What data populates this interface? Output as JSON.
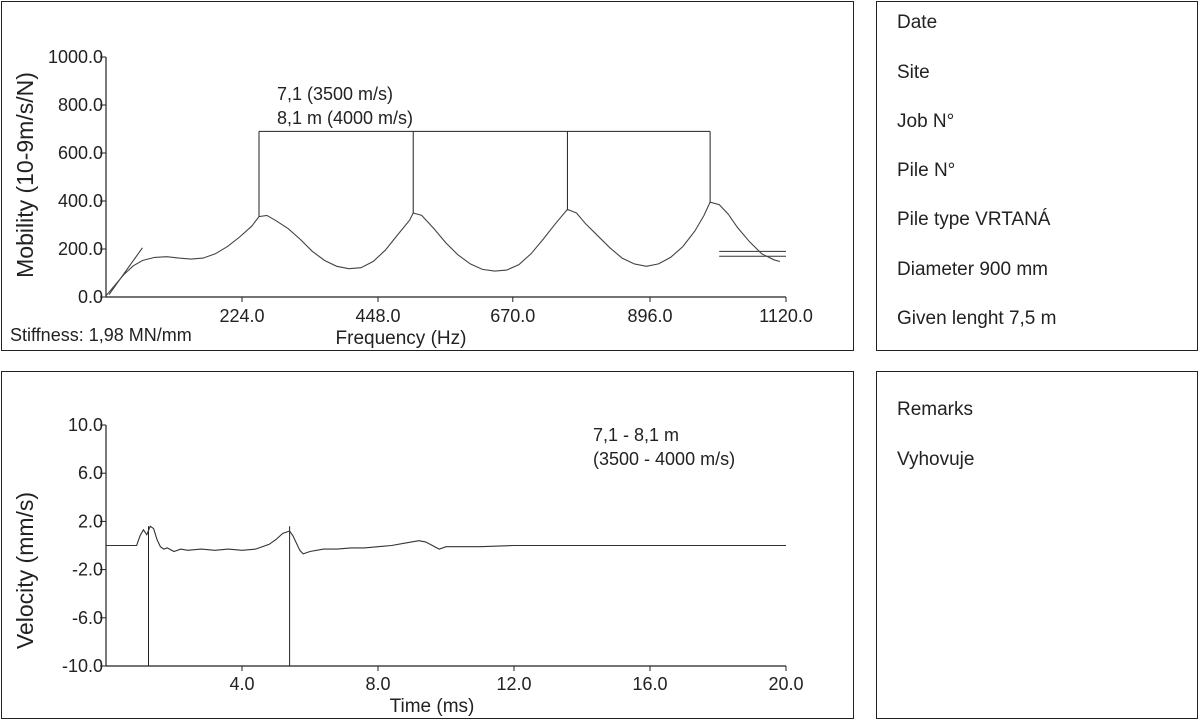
{
  "info": {
    "date_label": "Date",
    "site_label": "Site",
    "job_label": "Job N°",
    "pile_label": "Pile N°",
    "pile_type": "Pile type VRTANÁ",
    "diameter": "Diameter 900 mm",
    "given_length": "Given lenght 7,5 m"
  },
  "remarks": {
    "title": "Remarks",
    "text": "Vyhovuje"
  },
  "chart_data": [
    {
      "type": "line",
      "xlabel": "Frequency (Hz)",
      "ylabel": "Mobility (10-9m/s/N)",
      "xlim": [
        0,
        1120
      ],
      "ylim": [
        0,
        1000
      ],
      "xticks": [
        224,
        448,
        670,
        896,
        1120
      ],
      "xtick_labels": [
        "224.0",
        "448.0",
        "670.0",
        "896.0",
        "1120.0"
      ],
      "yticks": [
        0,
        200,
        400,
        600,
        800,
        1000
      ],
      "ytick_labels": [
        "0.0",
        "200.0",
        "400.0",
        "600.0",
        "800.0",
        "1000.0"
      ],
      "stiffness": "Stiffness: 1,98 MN/mm",
      "annotation": [
        "7,1 (3500 m/s)",
        "8,1 m (4000 m/s)"
      ],
      "peak_markers_x": [
        252,
        506,
        760,
        995
      ],
      "marker_top_y": 690,
      "stiffness_line": [
        [
          5,
          10
        ],
        [
          60,
          205
        ]
      ],
      "ref_lines": [
        {
          "x": [
            1010,
            1120
          ],
          "y": 190
        },
        {
          "x": [
            1010,
            1120
          ],
          "y": 170
        }
      ],
      "series": [
        {
          "x": [
            0,
            15,
            30,
            45,
            60,
            80,
            100,
            120,
            140,
            160,
            180,
            200,
            220,
            240,
            252,
            265,
            280,
            300,
            320,
            340,
            360,
            380,
            400,
            420,
            440,
            460,
            480,
            500,
            506,
            520,
            540,
            560,
            580,
            600,
            620,
            640,
            660,
            680,
            700,
            720,
            740,
            760,
            775,
            790,
            810,
            830,
            850,
            870,
            890,
            910,
            930,
            950,
            970,
            985,
            995,
            1010,
            1025,
            1040,
            1060,
            1080,
            1100,
            1110
          ],
          "y": [
            5,
            50,
            95,
            130,
            152,
            165,
            168,
            162,
            158,
            162,
            180,
            210,
            250,
            295,
            335,
            340,
            318,
            285,
            240,
            190,
            152,
            128,
            118,
            122,
            148,
            195,
            258,
            320,
            350,
            340,
            285,
            225,
            175,
            138,
            115,
            108,
            112,
            135,
            180,
            240,
            305,
            365,
            350,
            305,
            255,
            205,
            162,
            138,
            128,
            138,
            165,
            210,
            275,
            340,
            395,
            385,
            345,
            290,
            230,
            180,
            155,
            148
          ]
        }
      ]
    },
    {
      "type": "line",
      "xlabel": "Time (ms)",
      "ylabel": "Velocity (mm/s)",
      "xlim": [
        0,
        20
      ],
      "ylim": [
        -10,
        10
      ],
      "xticks": [
        4,
        8,
        12,
        16,
        20
      ],
      "xtick_labels": [
        "4.0",
        "8.0",
        "12.0",
        "16.0",
        "20.0"
      ],
      "yticks": [
        10,
        6,
        2,
        -2,
        -6,
        -10
      ],
      "ytick_labels": [
        "10.0",
        "6.0",
        "2.0",
        "-2.0",
        "-6.0",
        "-10.0"
      ],
      "annotation": [
        "7,1 - 8,1 m",
        "(3500 - 4000 m/s)"
      ],
      "markers_x": [
        1.25,
        5.4
      ],
      "series": [
        {
          "x": [
            0,
            0.9,
            1.0,
            1.1,
            1.2,
            1.3,
            1.4,
            1.5,
            1.6,
            1.7,
            1.8,
            2.0,
            2.2,
            2.4,
            2.8,
            3.2,
            3.6,
            4.0,
            4.4,
            4.8,
            5.0,
            5.2,
            5.4,
            5.5,
            5.6,
            5.7,
            5.8,
            6.0,
            6.4,
            6.8,
            7.2,
            7.6,
            8.0,
            8.4,
            8.8,
            9.2,
            9.4,
            9.6,
            9.8,
            10.0,
            10.5,
            11.0,
            12.0,
            13.0,
            14.0,
            15.0,
            16.0,
            17.0,
            18.0,
            19.0,
            20.0
          ],
          "y": [
            0,
            0,
            0.8,
            1.3,
            0.9,
            1.6,
            1.4,
            0.5,
            -0.1,
            -0.3,
            -0.2,
            -0.5,
            -0.3,
            -0.4,
            -0.3,
            -0.4,
            -0.3,
            -0.4,
            -0.3,
            0.1,
            0.5,
            1.0,
            1.2,
            0.8,
            0.2,
            -0.4,
            -0.7,
            -0.5,
            -0.3,
            -0.3,
            -0.2,
            -0.2,
            -0.1,
            0,
            0.2,
            0.4,
            0.3,
            0,
            -0.3,
            -0.1,
            -0.1,
            -0.1,
            0,
            0,
            0,
            0,
            0,
            0,
            0,
            0,
            0
          ]
        }
      ]
    }
  ]
}
